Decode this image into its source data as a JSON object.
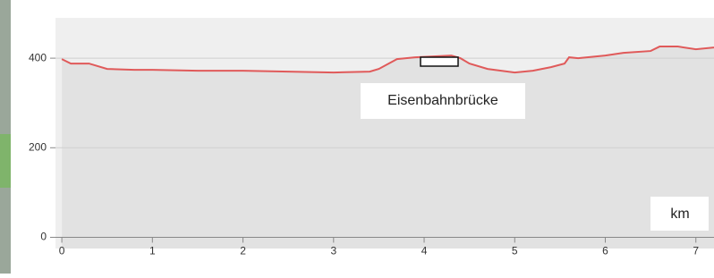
{
  "chart_data": {
    "type": "area",
    "x": [
      0,
      0.1,
      0.3,
      0.5,
      0.8,
      1.0,
      1.5,
      2.0,
      2.5,
      3.0,
      3.4,
      3.5,
      3.7,
      3.9,
      4.1,
      4.3,
      4.4,
      4.5,
      4.7,
      5.0,
      5.2,
      5.4,
      5.55,
      5.6,
      5.7,
      6.0,
      6.2,
      6.5,
      6.6,
      6.8,
      7.0,
      7.2
    ],
    "values": [
      398,
      388,
      388,
      376,
      374,
      374,
      372,
      372,
      370,
      368,
      370,
      376,
      398,
      402,
      404,
      406,
      400,
      388,
      376,
      368,
      372,
      380,
      388,
      402,
      400,
      406,
      412,
      416,
      426,
      426,
      420,
      424
    ],
    "color": "#e05a5a",
    "xlim": [
      -0.07,
      7.2
    ],
    "ylim": [
      -25,
      490
    ],
    "xticks": [
      0,
      1,
      2,
      3,
      4,
      5,
      6,
      7
    ],
    "yticks": [
      0,
      200,
      400
    ],
    "grid": true,
    "annotation": "Eisenbahnbrücke",
    "x_label": "km"
  }
}
